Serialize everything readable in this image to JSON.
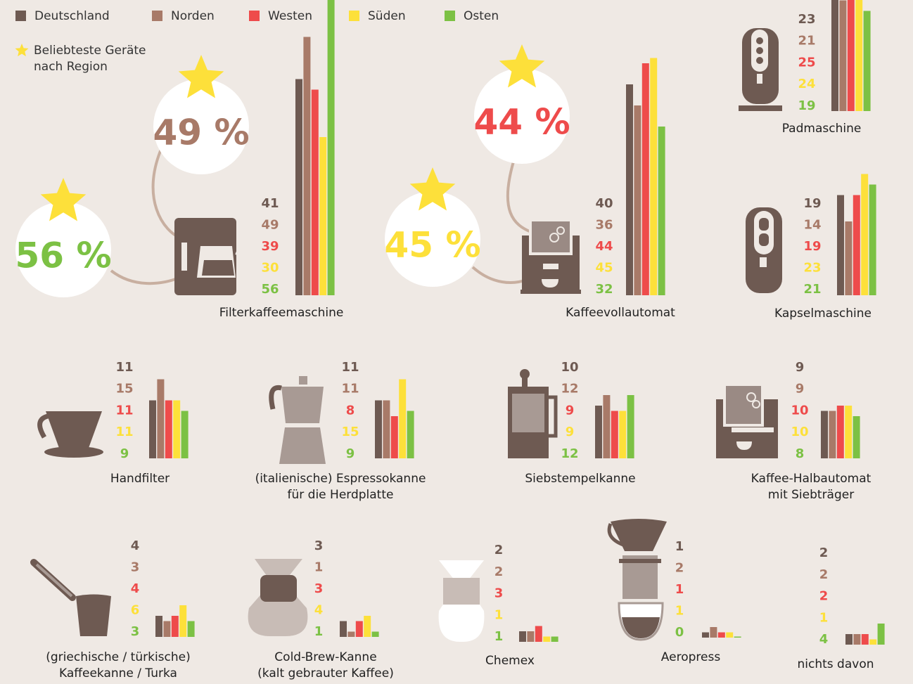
{
  "legend": {
    "categories": [
      "Deutschland",
      "Norden",
      "Westen",
      "Süden",
      "Osten"
    ],
    "colors": [
      "#6e5a52",
      "#a87a68",
      "#ee4b4b",
      "#fde03a",
      "#7cc144"
    ],
    "note": "Beliebteste Geräte\nnach Region"
  },
  "chart_data": [
    {
      "type": "bar",
      "title": "Filterkaffeemaschine",
      "values": [
        41,
        49,
        39,
        30,
        56
      ],
      "highlights": [
        {
          "label": "49 %",
          "color": "#a87a68"
        },
        {
          "label": "56 %",
          "color": "#7cc144"
        }
      ]
    },
    {
      "type": "bar",
      "title": "Kaffeevollautomat",
      "values": [
        40,
        36,
        44,
        45,
        32
      ],
      "highlights": [
        {
          "label": "44 %",
          "color": "#ee4b4b"
        },
        {
          "label": "45 %",
          "color": "#fde03a"
        }
      ]
    },
    {
      "type": "bar",
      "title": "Padmaschine",
      "values": [
        23,
        21,
        25,
        24,
        19
      ]
    },
    {
      "type": "bar",
      "title": "Kapselmaschine",
      "values": [
        19,
        14,
        19,
        23,
        21
      ]
    },
    {
      "type": "bar",
      "title": "Handfilter",
      "values": [
        11,
        15,
        11,
        11,
        9
      ]
    },
    {
      "type": "bar",
      "title": "(italienische) Espressokanne\nfür die Herdplatte",
      "values": [
        11,
        11,
        8,
        15,
        9
      ]
    },
    {
      "type": "bar",
      "title": "Siebstempelkanne",
      "values": [
        10,
        12,
        9,
        9,
        12
      ]
    },
    {
      "type": "bar",
      "title": "Kaffee-Halbautomat\nmit Siebträger",
      "values": [
        9,
        9,
        10,
        10,
        8
      ]
    },
    {
      "type": "bar",
      "title": "(griechische / türkische)\nKaffeekanne / Turka",
      "values": [
        4,
        3,
        4,
        6,
        3
      ]
    },
    {
      "type": "bar",
      "title": "Cold-Brew-Kanne\n(kalt gebrauter Kaffee)",
      "values": [
        3,
        1,
        3,
        4,
        1
      ]
    },
    {
      "type": "bar",
      "title": "Chemex",
      "values": [
        2,
        2,
        3,
        1,
        1
      ]
    },
    {
      "type": "bar",
      "title": "Aeropress",
      "values": [
        1,
        2,
        1,
        1,
        0
      ]
    },
    {
      "type": "bar",
      "title": "nichts davon",
      "values": [
        2,
        2,
        2,
        1,
        4
      ]
    }
  ]
}
